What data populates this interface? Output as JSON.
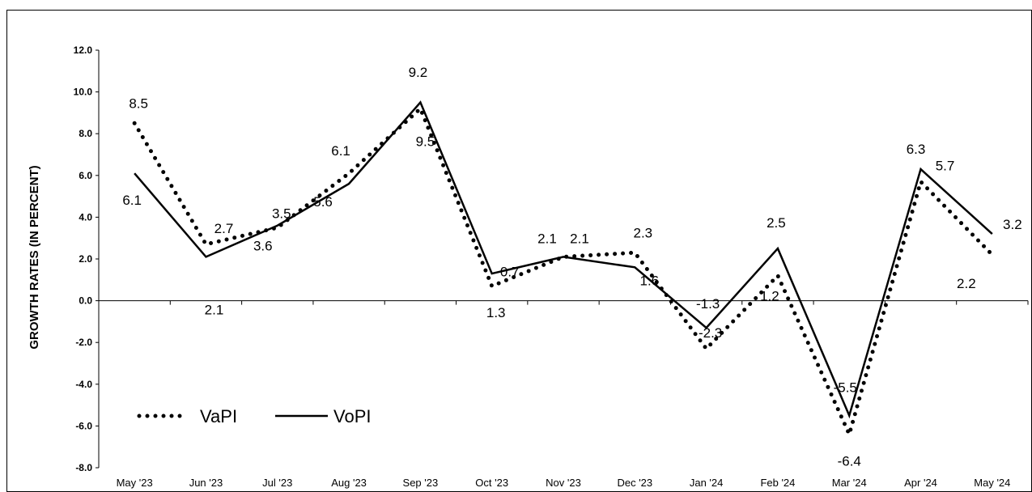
{
  "chart_data": {
    "type": "line",
    "title": "",
    "xlabel": "",
    "ylabel": "GROWTH RATES (IN PERCENT)",
    "categories": [
      "May '23",
      "Jun '23",
      "Jul '23",
      "Aug '23",
      "Sep '23",
      "Oct '23",
      "Nov '23",
      "Dec '23",
      "Jan '24",
      "Feb '24",
      "Mar '24",
      "Apr '24",
      "May '24"
    ],
    "ylim": [
      -8.0,
      12.0
    ],
    "yticks": [
      "12.0",
      "10.0",
      "8.0",
      "6.0",
      "4.0",
      "2.0",
      "0.0",
      "-2.0",
      "-4.0",
      "-6.0",
      "-8.0"
    ],
    "grid": false,
    "legend_position": "bottom-left",
    "series": [
      {
        "name": "VaPI",
        "style": "dotted",
        "values": [
          8.5,
          2.7,
          3.5,
          6.1,
          9.2,
          0.7,
          2.1,
          2.3,
          -2.3,
          1.2,
          -6.4,
          5.7,
          2.2
        ],
        "labels": [
          "8.5",
          "2.7",
          "3.5",
          "6.1",
          "9.2",
          "0.7",
          "2.1",
          "2.3",
          "-2.3",
          "1.2",
          "-6.4",
          "5.7",
          "2.2"
        ]
      },
      {
        "name": "VoPI",
        "style": "solid",
        "values": [
          6.1,
          2.1,
          3.6,
          5.6,
          9.5,
          1.3,
          2.1,
          1.6,
          -1.3,
          2.5,
          -5.5,
          6.3,
          3.2
        ],
        "labels": [
          "6.1",
          "2.1",
          "3.6",
          "5.6",
          "9.5",
          "1.3",
          "2.1",
          "1.6",
          "-1.3",
          "2.5",
          "-5.5",
          "6.3",
          "3.2"
        ]
      }
    ],
    "colors": {
      "line": "#000000",
      "axis": "#000000"
    }
  }
}
